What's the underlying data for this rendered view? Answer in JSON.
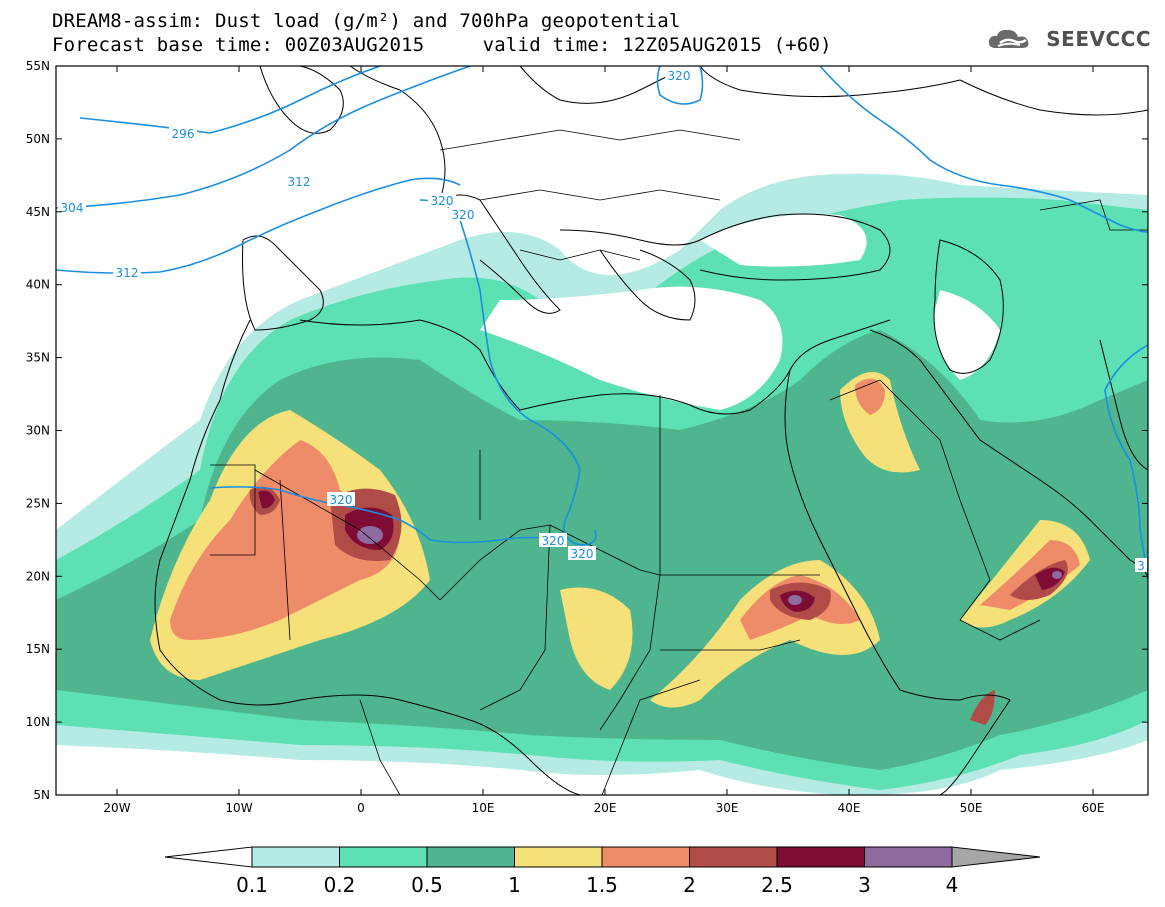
{
  "title": {
    "line1": "DREAM8-assim: Dust load (g/m²) and 700hPa geopotential",
    "line2": "Forecast base time: 00Z03AUG2015     valid time: 12Z05AUG2015 (+60)"
  },
  "brand": {
    "name": "SEEVCCC",
    "icon": "cloud-logo-icon"
  },
  "axes": {
    "lat_labels": [
      "55N",
      "50N",
      "45N",
      "40N",
      "35N",
      "30N",
      "25N",
      "20N",
      "15N",
      "10N",
      "5N"
    ],
    "lon_labels": [
      "20W",
      "10W",
      "0",
      "10E",
      "20E",
      "30E",
      "40E",
      "50E",
      "60E"
    ]
  },
  "contours": {
    "color": "#1a8fe0",
    "labels": [
      "296",
      "304",
      "312",
      "320",
      "320",
      "320",
      "320",
      "320",
      "320",
      "312",
      "3"
    ]
  },
  "colorbar": {
    "levels": [
      "0.1",
      "0.2",
      "0.5",
      "1",
      "1.5",
      "2",
      "2.5",
      "3",
      "4"
    ],
    "colors": [
      "#b5ebe3",
      "#5ce0b4",
      "#4fb58e",
      "#f5e07a",
      "#ee8c6a",
      "#b04c48",
      "#7e0c34",
      "#8e6aa0"
    ],
    "below_color": "#ffffff",
    "above_color": "#a6a6a6"
  },
  "map_colors": {
    "land": "#ffffff",
    "outline": "#000000"
  }
}
